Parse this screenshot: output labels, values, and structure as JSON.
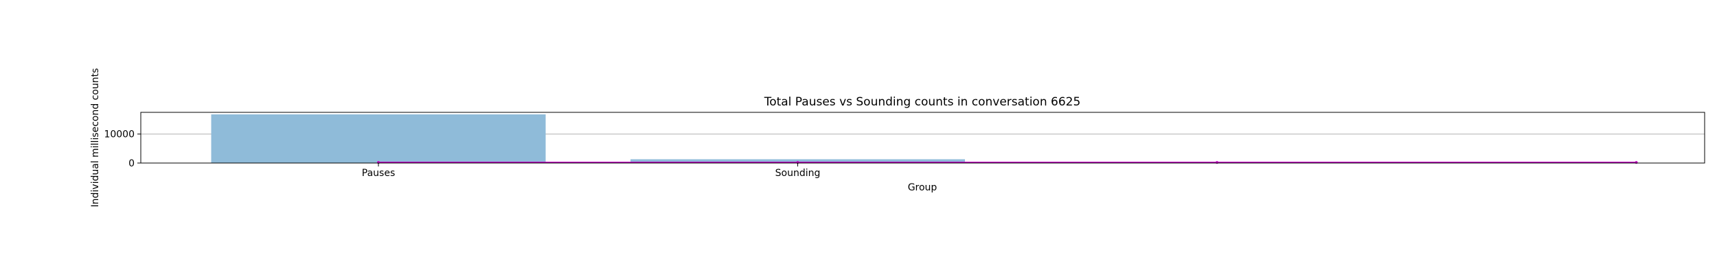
{
  "chart_data": {
    "type": "bar",
    "title": "Total Pauses vs Sounding counts in conversation 6625",
    "xlabel": "Group",
    "ylabel": "Individual millisecond counts",
    "categories": [
      "Pauses",
      "Sounding"
    ],
    "values": [
      16800,
      1300
    ],
    "bar_color": "#8fbbd9",
    "ylim": [
      0,
      17500
    ],
    "yticks": [
      0,
      10000
    ],
    "grid": "horizontal",
    "overlay_line": {
      "color": "#bf00bf",
      "x": [
        0,
        1,
        2,
        3
      ],
      "values": [
        200,
        200,
        200,
        200
      ]
    }
  }
}
